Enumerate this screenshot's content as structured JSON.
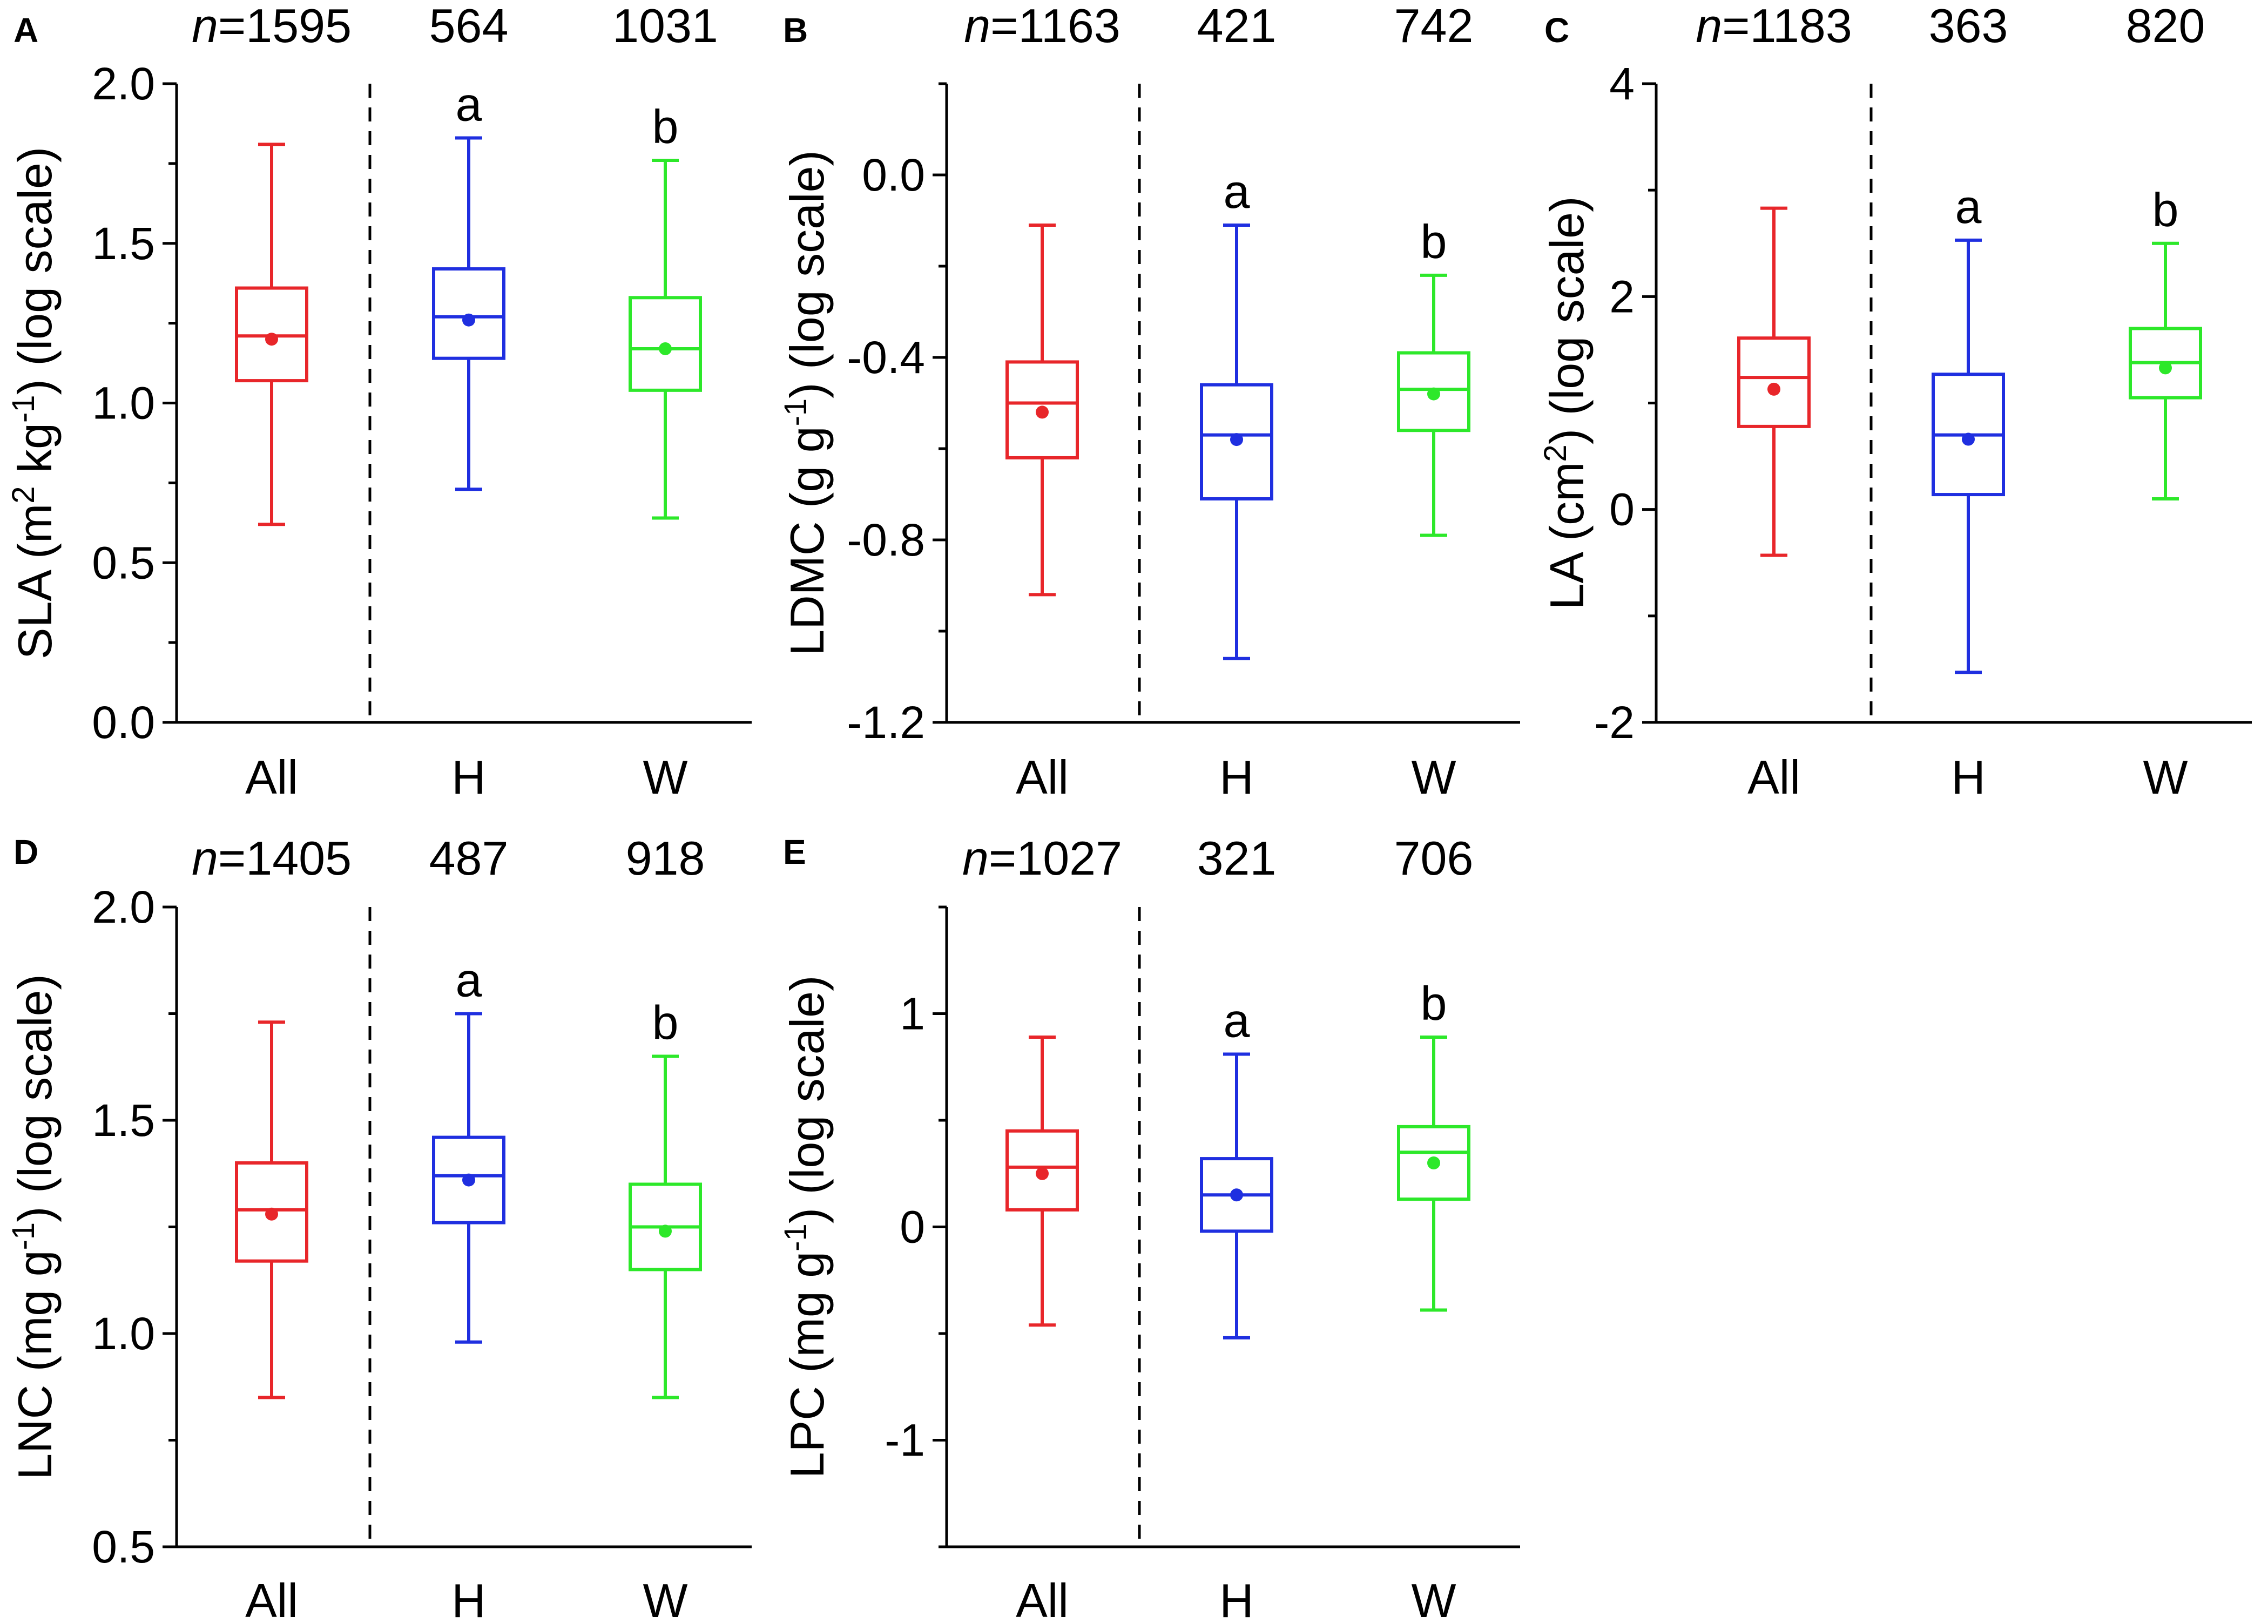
{
  "chart_data": [
    {
      "panel": "A",
      "type": "box",
      "ylabel_main": "SLA (m",
      "ylabel_sup1": "2",
      "ylabel_mid": " kg",
      "ylabel_sup2": "-1",
      "ylabel_end": ") (log scale)",
      "ylim": [
        0.0,
        2.0
      ],
      "yticks": [
        "0.0",
        "0.5",
        "1.0",
        "1.5",
        "2.0"
      ],
      "ytick_values": [
        0.0,
        0.5,
        1.0,
        1.5,
        2.0
      ],
      "n_prefix": "n",
      "categories": [
        "All",
        "H",
        "W"
      ],
      "n_labels": [
        "=1595",
        "564",
        "1031"
      ],
      "boxes": [
        {
          "category": "All",
          "color": "#e8262a",
          "whisker_low": 0.62,
          "q1": 1.07,
          "median": 1.21,
          "q3": 1.36,
          "whisker_high": 1.81,
          "mean": 1.2,
          "letter": ""
        },
        {
          "category": "H",
          "color": "#1f2fe0",
          "whisker_low": 0.73,
          "q1": 1.14,
          "median": 1.27,
          "q3": 1.42,
          "whisker_high": 1.83,
          "mean": 1.26,
          "letter": "a"
        },
        {
          "category": "W",
          "color": "#2de82a",
          "whisker_low": 0.64,
          "q1": 1.04,
          "median": 1.17,
          "q3": 1.33,
          "whisker_high": 1.76,
          "mean": 1.17,
          "letter": "b"
        }
      ]
    },
    {
      "panel": "B",
      "type": "box",
      "ylabel_main": "LDMC (g g",
      "ylabel_sup1": "",
      "ylabel_mid": "",
      "ylabel_sup2": "-1",
      "ylabel_end": ") (log scale)",
      "ylim": [
        -1.2,
        0.2
      ],
      "yticks": [
        "-1.2",
        "-0.8",
        "-0.4",
        "0.0"
      ],
      "ytick_values": [
        -1.2,
        -0.8,
        -0.4,
        0.0
      ],
      "n_prefix": "n",
      "categories": [
        "All",
        "H",
        "W"
      ],
      "n_labels": [
        "=1163",
        "421",
        "742"
      ],
      "boxes": [
        {
          "category": "All",
          "color": "#e8262a",
          "whisker_low": -0.92,
          "q1": -0.62,
          "median": -0.5,
          "q3": -0.41,
          "whisker_high": -0.11,
          "mean": -0.52,
          "letter": ""
        },
        {
          "category": "H",
          "color": "#1f2fe0",
          "whisker_low": -1.06,
          "q1": -0.71,
          "median": -0.57,
          "q3": -0.46,
          "whisker_high": -0.11,
          "mean": -0.58,
          "letter": "a"
        },
        {
          "category": "W",
          "color": "#2de82a",
          "whisker_low": -0.79,
          "q1": -0.56,
          "median": -0.47,
          "q3": -0.39,
          "whisker_high": -0.22,
          "mean": -0.48,
          "letter": "b"
        }
      ]
    },
    {
      "panel": "C",
      "type": "box",
      "ylabel_main": "LA (cm",
      "ylabel_sup1": "2",
      "ylabel_mid": "",
      "ylabel_sup2": "",
      "ylabel_end": ") (log scale)",
      "ylim": [
        -2,
        4
      ],
      "yticks": [
        "-2",
        "0",
        "2",
        "4"
      ],
      "ytick_values": [
        -2,
        0,
        2,
        4
      ],
      "n_prefix": "n",
      "categories": [
        "All",
        "H",
        "W"
      ],
      "n_labels": [
        "=1183",
        "363",
        "820"
      ],
      "boxes": [
        {
          "category": "All",
          "color": "#e8262a",
          "whisker_low": -0.43,
          "q1": 0.78,
          "median": 1.24,
          "q3": 1.61,
          "whisker_high": 2.83,
          "mean": 1.13,
          "letter": ""
        },
        {
          "category": "H",
          "color": "#1f2fe0",
          "whisker_low": -1.53,
          "q1": 0.14,
          "median": 0.7,
          "q3": 1.27,
          "whisker_high": 2.53,
          "mean": 0.66,
          "letter": "a"
        },
        {
          "category": "W",
          "color": "#2de82a",
          "whisker_low": 0.1,
          "q1": 1.05,
          "median": 1.38,
          "q3": 1.7,
          "whisker_high": 2.5,
          "mean": 1.33,
          "letter": "b"
        }
      ]
    },
    {
      "panel": "D",
      "type": "box",
      "ylabel_main": "LNC (mg g",
      "ylabel_sup1": "",
      "ylabel_mid": "",
      "ylabel_sup2": "-1",
      "ylabel_end": ") (log scale)",
      "ylim": [
        0.5,
        2.0
      ],
      "yticks": [
        "0.5",
        "1.0",
        "1.5",
        "2.0"
      ],
      "ytick_values": [
        0.5,
        1.0,
        1.5,
        2.0
      ],
      "n_prefix": "n",
      "categories": [
        "All",
        "H",
        "W"
      ],
      "n_labels": [
        "=1405",
        "487",
        "918"
      ],
      "boxes": [
        {
          "category": "All",
          "color": "#e8262a",
          "whisker_low": 0.85,
          "q1": 1.17,
          "median": 1.29,
          "q3": 1.4,
          "whisker_high": 1.73,
          "mean": 1.28,
          "letter": ""
        },
        {
          "category": "H",
          "color": "#1f2fe0",
          "whisker_low": 0.98,
          "q1": 1.26,
          "median": 1.37,
          "q3": 1.46,
          "whisker_high": 1.75,
          "mean": 1.36,
          "letter": "a"
        },
        {
          "category": "W",
          "color": "#2de82a",
          "whisker_low": 0.85,
          "q1": 1.15,
          "median": 1.25,
          "q3": 1.35,
          "whisker_high": 1.65,
          "mean": 1.24,
          "letter": "b"
        }
      ]
    },
    {
      "panel": "E",
      "type": "box",
      "ylabel_main": "LPC (mg g",
      "ylabel_sup1": "",
      "ylabel_mid": "",
      "ylabel_sup2": "-1",
      "ylabel_end": ") (log scale)",
      "ylim": [
        -1.5,
        1.5
      ],
      "yticks": [
        "-1",
        "0",
        "1"
      ],
      "ytick_values": [
        -1,
        0,
        1
      ],
      "n_prefix": "n",
      "categories": [
        "All",
        "H",
        "W"
      ],
      "n_labels": [
        "=1027",
        "321",
        "706"
      ],
      "boxes": [
        {
          "category": "All",
          "color": "#e8262a",
          "whisker_low": -0.46,
          "q1": 0.08,
          "median": 0.28,
          "q3": 0.45,
          "whisker_high": 0.89,
          "mean": 0.25,
          "letter": ""
        },
        {
          "category": "H",
          "color": "#1f2fe0",
          "whisker_low": -0.52,
          "q1": -0.02,
          "median": 0.15,
          "q3": 0.32,
          "whisker_high": 0.81,
          "mean": 0.15,
          "letter": "a"
        },
        {
          "category": "W",
          "color": "#2de82a",
          "whisker_low": -0.39,
          "q1": 0.13,
          "median": 0.35,
          "q3": 0.47,
          "whisker_high": 0.89,
          "mean": 0.3,
          "letter": "b"
        }
      ]
    }
  ]
}
